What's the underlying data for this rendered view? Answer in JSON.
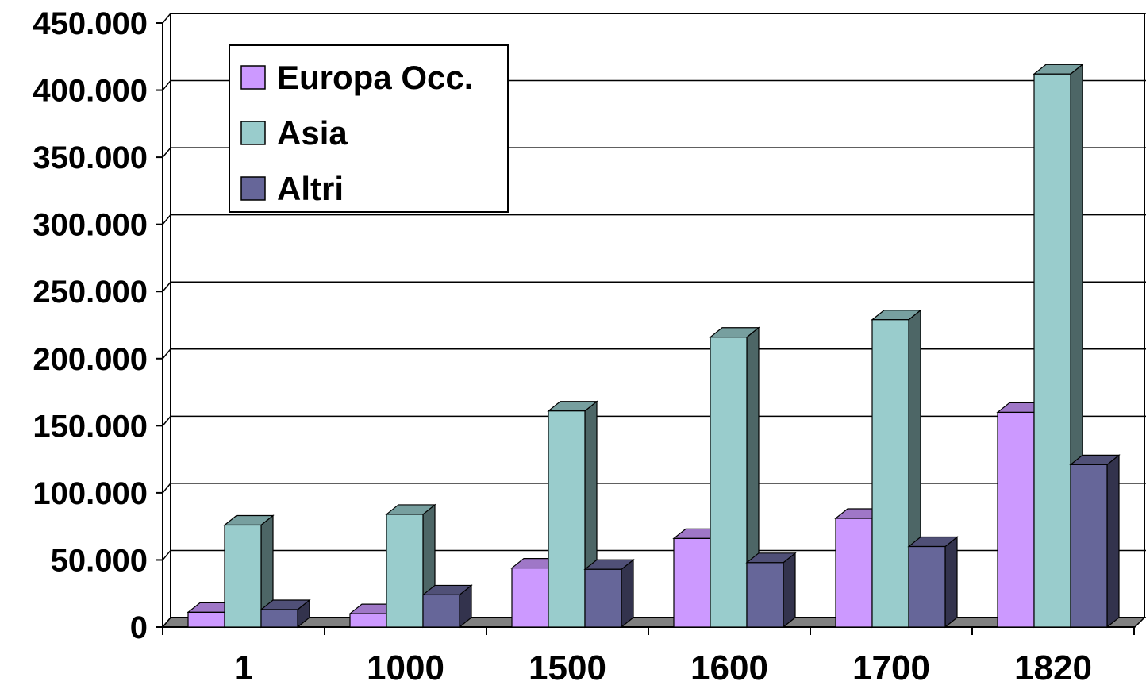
{
  "chart_data": {
    "type": "bar",
    "categories": [
      "1",
      "1000",
      "1500",
      "1600",
      "1700",
      "1820"
    ],
    "series": [
      {
        "name": "Europa Occ.",
        "values": [
          11000,
          10000,
          44000,
          66000,
          81000,
          160000
        ],
        "color": "#cc99ff"
      },
      {
        "name": "Asia",
        "values": [
          76000,
          84000,
          161000,
          216000,
          229000,
          412000
        ],
        "color": "#99cccc"
      },
      {
        "name": "Altri",
        "values": [
          13000,
          24000,
          43000,
          48000,
          60000,
          121000
        ],
        "color": "#666699"
      }
    ],
    "ylim": [
      0,
      450000
    ],
    "yticks": [
      "0",
      "50.000",
      "100.000",
      "150.000",
      "200.000",
      "250.000",
      "300.000",
      "350.000",
      "400.000",
      "450.000"
    ],
    "grid": true,
    "legend_position": "top-left",
    "style": "3d-clustered-column"
  }
}
